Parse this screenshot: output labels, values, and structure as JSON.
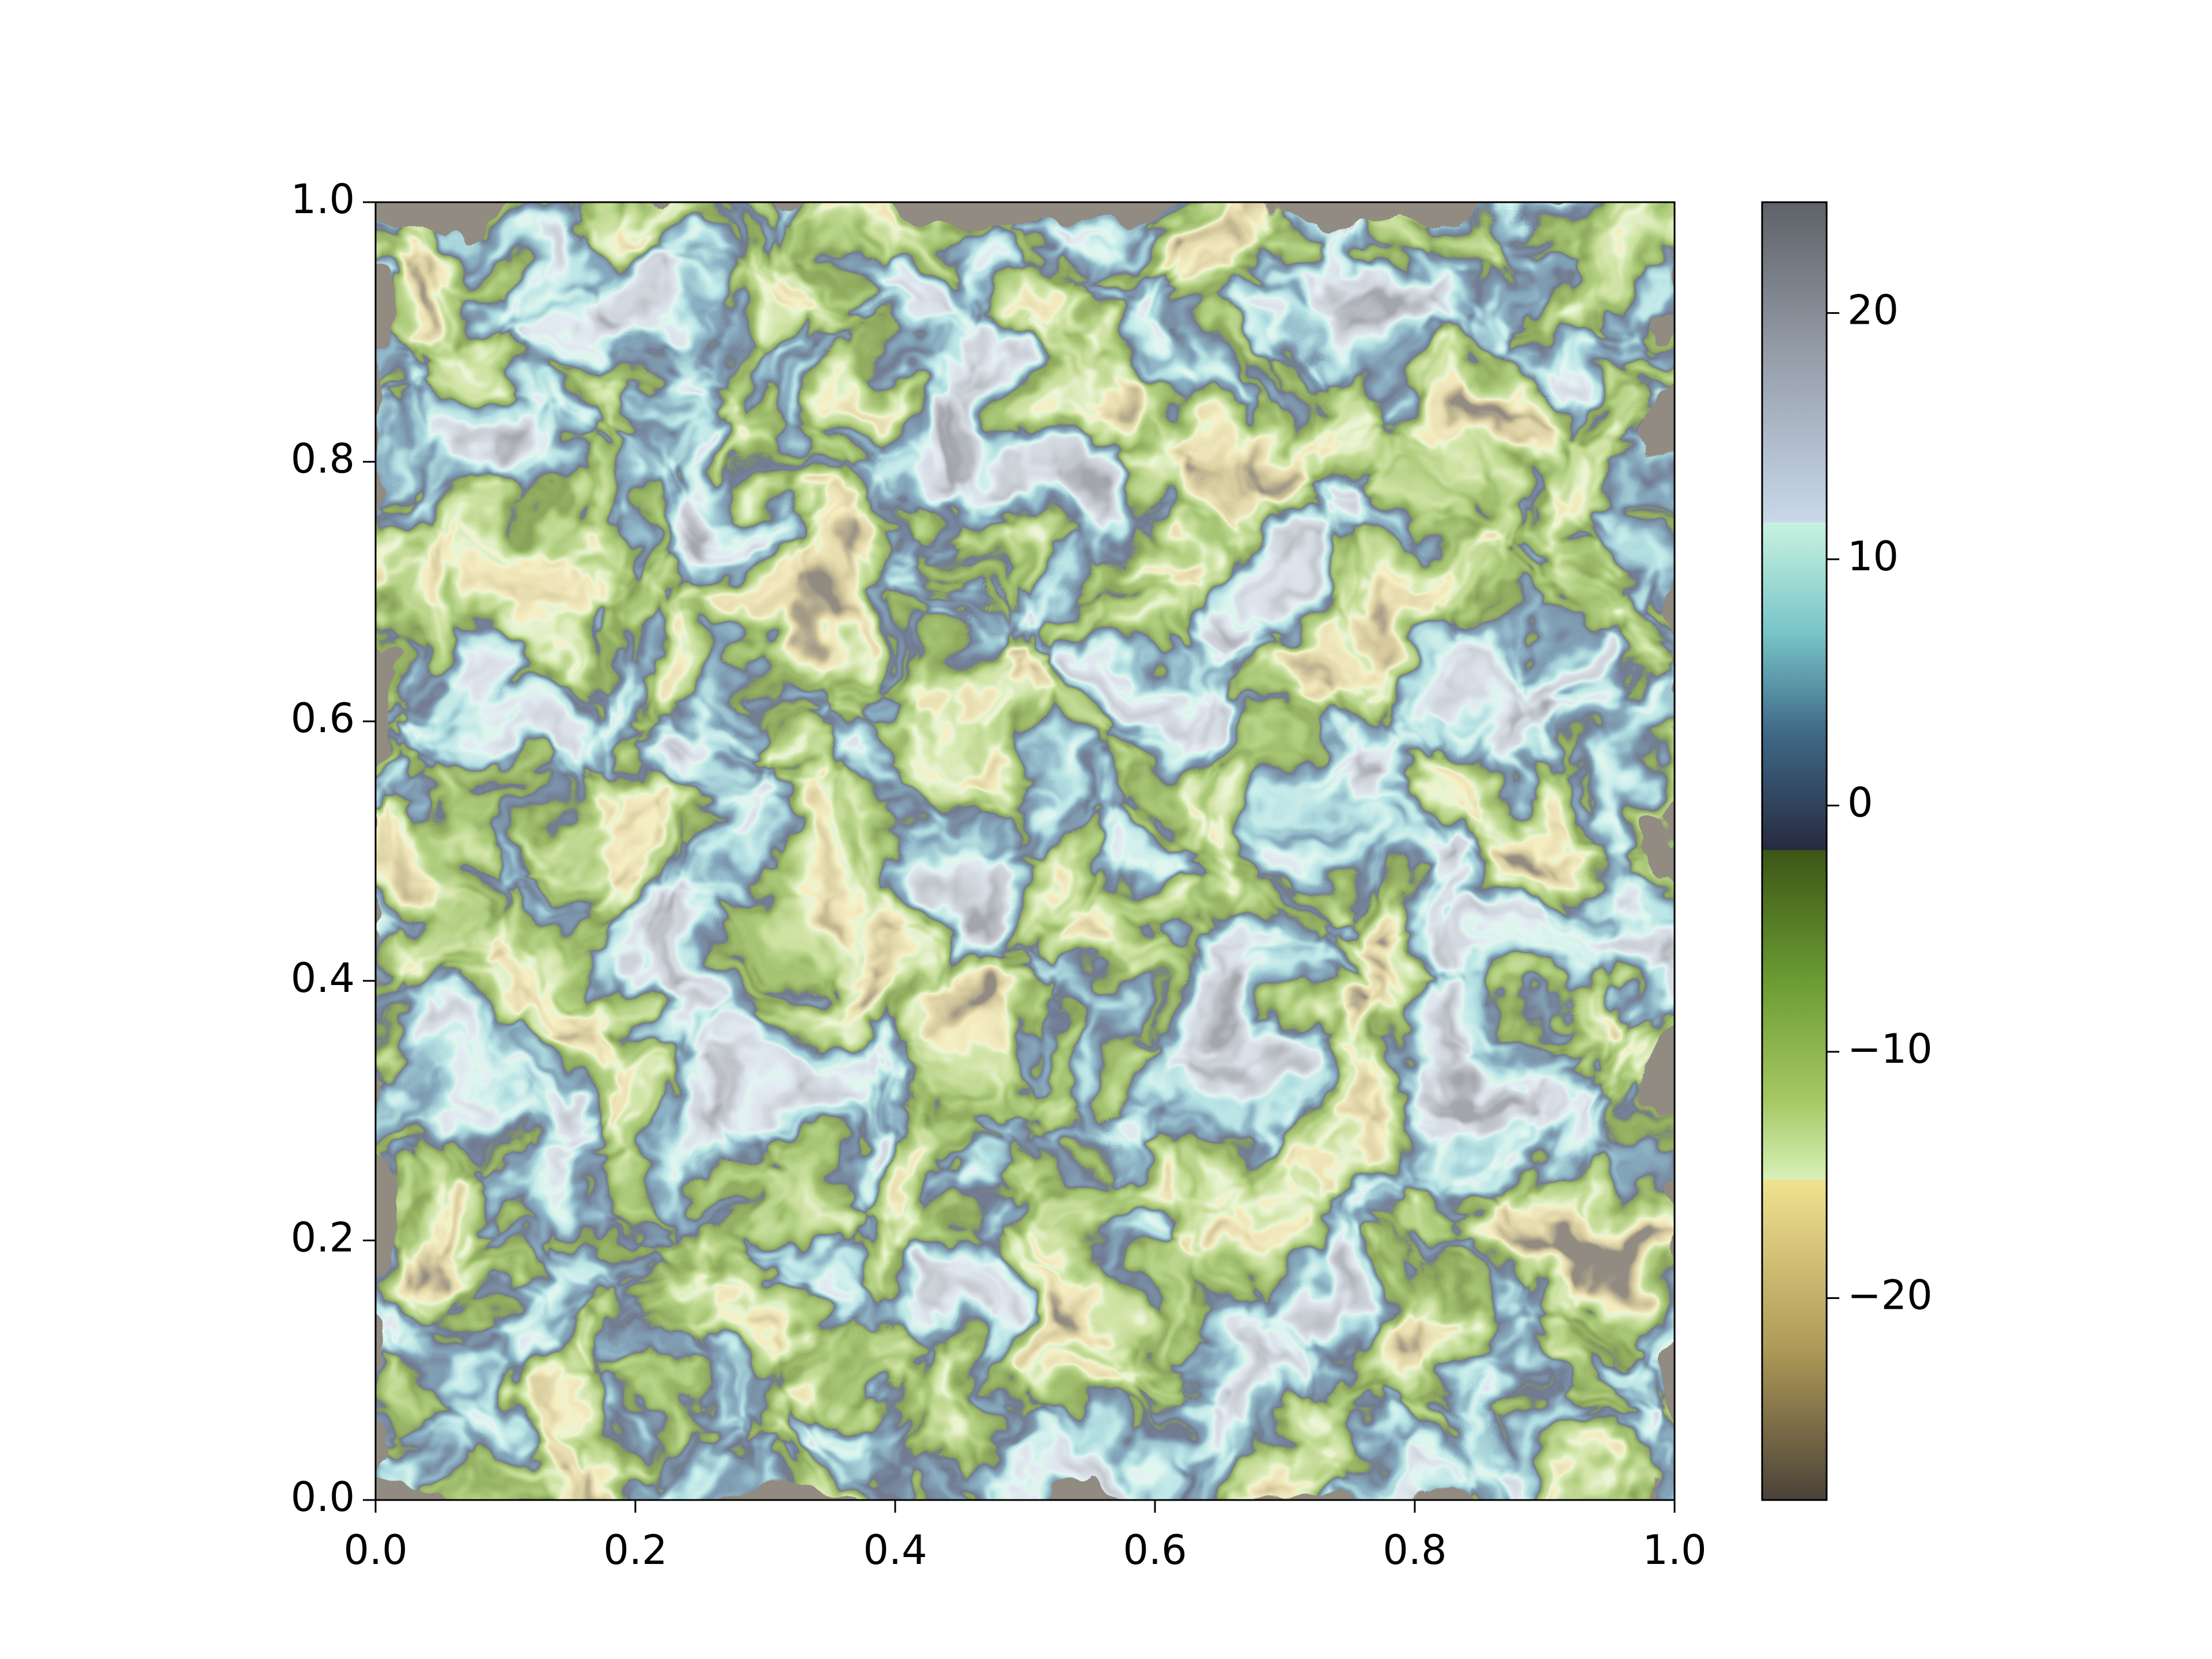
{
  "chart_data": {
    "type": "image",
    "xlim": [
      0,
      1
    ],
    "ylim": [
      0,
      1
    ],
    "xticks": [
      {
        "value": 0,
        "label": "0.0"
      },
      {
        "value": 0.2,
        "label": "0.2"
      },
      {
        "value": 0.4,
        "label": "0.4"
      },
      {
        "value": 0.6,
        "label": "0.6"
      },
      {
        "value": 0.8,
        "label": "0.8"
      },
      {
        "value": 1,
        "label": "1.0"
      }
    ],
    "yticks": [
      {
        "value": 0,
        "label": "0.0"
      },
      {
        "value": 0.2,
        "label": "0.2"
      },
      {
        "value": 0.4,
        "label": "0.4"
      },
      {
        "value": 0.6,
        "label": "0.6"
      },
      {
        "value": 0.8,
        "label": "0.8"
      },
      {
        "value": 1,
        "label": "1.0"
      }
    ],
    "colorbar": {
      "lim": [
        -28.2,
        24.5
      ],
      "ticks": [
        {
          "value": -20,
          "label": "−20"
        },
        {
          "value": -10,
          "label": "−10"
        },
        0,
        10,
        20
      ],
      "colormap": [
        {
          "value": -28.2,
          "color": "#4a4238"
        },
        {
          "value": -22,
          "color": "#b09a58"
        },
        {
          "value": -15.2,
          "color": "#f0e290"
        },
        {
          "value": -15.2,
          "color": "#d8f0b8"
        },
        {
          "value": -12,
          "color": "#a6c864"
        },
        {
          "value": -7,
          "color": "#6a9a32"
        },
        {
          "value": -1.8,
          "color": "#3c5616"
        },
        {
          "value": -1.8,
          "color": "#272a40"
        },
        {
          "value": 3,
          "color": "#3f6a88"
        },
        {
          "value": 7,
          "color": "#78c4c8"
        },
        {
          "value": 11.5,
          "color": "#c8f2e0"
        },
        {
          "value": 11.5,
          "color": "#c8d8ea"
        },
        {
          "value": 18,
          "color": "#98a0ac"
        },
        {
          "value": 24.5,
          "color": "#5e6268"
        }
      ]
    }
  }
}
